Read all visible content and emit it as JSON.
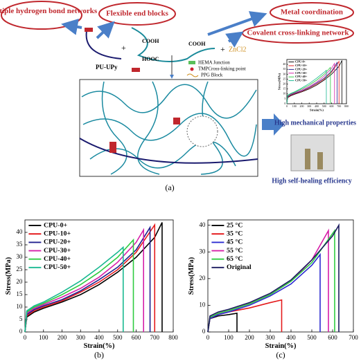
{
  "diagram": {
    "hydrogen": "Multiple hydrogen bond networks",
    "flexible": "Flexible end blocks",
    "metal": "Metal coordination",
    "covalent": "Covalent cross-linking network",
    "pu_upy": "PU-UPy",
    "zncl2": "ZnCl2",
    "cooh_1": "COOH",
    "cooh_2": "COOH",
    "hooc": "HOOC",
    "legend_hema": "HEMA Junction",
    "legend_tmp": "TMPCross-linking point",
    "legend_ppg": "PPG Block",
    "panel_label": "(a)",
    "mechanical": "High mechanical properties",
    "healing": "High self-healing efficiency"
  },
  "chart_data": [
    {
      "type": "line",
      "panel_label": "(b)",
      "xlabel": "Strain(%)",
      "ylabel": "Stress(MPa)",
      "xlim": [
        0,
        800
      ],
      "xticks": [
        0,
        100,
        200,
        300,
        400,
        500,
        600,
        700,
        800
      ],
      "ylim": [
        0,
        45
      ],
      "yticks": [
        0,
        5,
        10,
        15,
        20,
        25,
        30,
        35,
        40
      ],
      "legend": "upper-left",
      "series": [
        {
          "name": "CPU-0+",
          "color": "#000000",
          "x": [
            0,
            10,
            50,
            100,
            200,
            300,
            400,
            500,
            600,
            700,
            740,
            740
          ],
          "values": [
            0,
            6,
            8,
            9.5,
            12,
            15,
            19,
            24,
            30,
            38,
            44,
            0
          ]
        },
        {
          "name": "CPU-10+",
          "color": "#e41a1c",
          "x": [
            0,
            10,
            50,
            100,
            200,
            300,
            400,
            500,
            600,
            700,
            700
          ],
          "values": [
            0,
            6.5,
            8.5,
            10,
            12.5,
            16,
            20,
            25,
            32,
            43,
            0
          ]
        },
        {
          "name": "CPU-20+",
          "color": "#1f1f8f",
          "x": [
            0,
            10,
            50,
            100,
            200,
            300,
            400,
            500,
            600,
            675,
            675
          ],
          "values": [
            0,
            7,
            9,
            10.5,
            13,
            16.5,
            21,
            26,
            33,
            42,
            0
          ]
        },
        {
          "name": "CPU-30+",
          "color": "#d61fa8",
          "x": [
            0,
            10,
            50,
            100,
            200,
            300,
            400,
            500,
            600,
            640,
            640
          ],
          "values": [
            0,
            7.5,
            9.5,
            11,
            14,
            17.5,
            22,
            28,
            36,
            41,
            0
          ]
        },
        {
          "name": "CPU-40+",
          "color": "#2ecc40",
          "x": [
            0,
            10,
            50,
            100,
            200,
            300,
            400,
            500,
            585,
            585
          ],
          "values": [
            0,
            8,
            10,
            11.5,
            15,
            19,
            24,
            30,
            37,
            0
          ]
        },
        {
          "name": "CPU-50+",
          "color": "#17b890",
          "x": [
            0,
            10,
            50,
            100,
            200,
            300,
            400,
            500,
            530,
            530
          ],
          "values": [
            0,
            8.5,
            10.5,
            12,
            16,
            20.5,
            26,
            32,
            34,
            0
          ]
        }
      ]
    },
    {
      "type": "line",
      "panel_label": "(c)",
      "xlabel": "Strain(%)",
      "ylabel": "Stress(MPa)",
      "xlim": [
        0,
        700
      ],
      "xticks": [
        0,
        100,
        200,
        300,
        400,
        500,
        600,
        700
      ],
      "ylim": [
        0,
        42
      ],
      "yticks": [
        0,
        10,
        20,
        30,
        40
      ],
      "legend": "upper-left",
      "series": [
        {
          "name": "25 °C",
          "color": "#000000",
          "x": [
            0,
            10,
            50,
            100,
            140,
            140
          ],
          "values": [
            0,
            5,
            6,
            6.5,
            7,
            0
          ]
        },
        {
          "name": "35 °C",
          "color": "#e41a1c",
          "x": [
            0,
            10,
            50,
            100,
            200,
            300,
            355,
            355
          ],
          "values": [
            0,
            5,
            6.5,
            7.5,
            9,
            11,
            12,
            0
          ]
        },
        {
          "name": "45 °C",
          "color": "#2a2ad0",
          "x": [
            0,
            10,
            50,
            100,
            200,
            300,
            400,
            500,
            540,
            540
          ],
          "values": [
            0,
            5,
            6.5,
            7.5,
            10,
            13.5,
            18,
            25,
            29,
            0
          ]
        },
        {
          "name": "55 °C",
          "color": "#d61fa8",
          "x": [
            0,
            10,
            50,
            100,
            200,
            300,
            400,
            500,
            580,
            580
          ],
          "values": [
            0,
            5.5,
            7,
            8,
            10.5,
            14,
            19,
            27,
            38,
            0
          ]
        },
        {
          "name": "65 °C",
          "color": "#2ecc40",
          "x": [
            0,
            10,
            50,
            100,
            200,
            300,
            400,
            500,
            610,
            610
          ],
          "values": [
            0,
            5.5,
            7,
            8,
            10.5,
            14,
            19,
            26,
            38,
            0
          ]
        },
        {
          "name": "Original",
          "color": "#1a1a5e",
          "x": [
            0,
            10,
            50,
            100,
            200,
            300,
            400,
            500,
            600,
            630,
            630
          ],
          "values": [
            0,
            6,
            7.5,
            8.5,
            11,
            14.5,
            19.5,
            27,
            36,
            40,
            0
          ]
        }
      ]
    }
  ]
}
